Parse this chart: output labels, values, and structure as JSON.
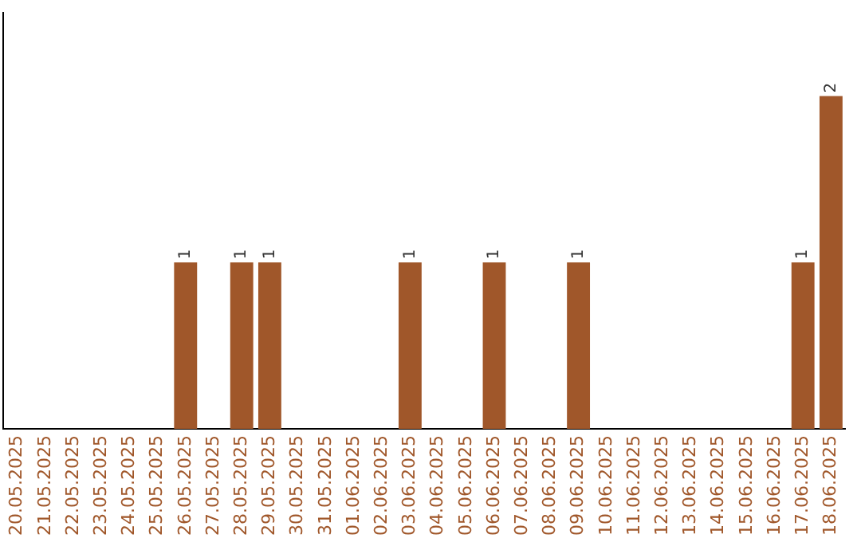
{
  "chart_data": {
    "type": "bar",
    "categories": [
      "20.05.2025",
      "21.05.2025",
      "22.05.2025",
      "23.05.2025",
      "24.05.2025",
      "25.05.2025",
      "26.05.2025",
      "27.05.2025",
      "28.05.2025",
      "29.05.2025",
      "30.05.2025",
      "31.05.2025",
      "01.06.2025",
      "02.06.2025",
      "03.06.2025",
      "04.06.2025",
      "05.06.2025",
      "06.06.2025",
      "07.06.2025",
      "08.06.2025",
      "09.06.2025",
      "10.06.2025",
      "11.06.2025",
      "12.06.2025",
      "13.06.2025",
      "14.06.2025",
      "15.06.2025",
      "16.06.2025",
      "17.06.2025",
      "18.06.2025"
    ],
    "values": [
      0,
      0,
      0,
      0,
      0,
      0,
      1,
      0,
      1,
      1,
      0,
      0,
      0,
      0,
      1,
      0,
      0,
      1,
      0,
      0,
      1,
      0,
      0,
      0,
      0,
      0,
      0,
      0,
      1,
      2
    ],
    "value_labels": [
      null,
      null,
      null,
      null,
      null,
      null,
      "1",
      null,
      "1",
      "1",
      null,
      null,
      null,
      null,
      "1",
      null,
      null,
      "1",
      null,
      null,
      "1",
      null,
      null,
      null,
      null,
      null,
      null,
      null,
      "1",
      "2"
    ],
    "color": "#a0572a",
    "grid": false,
    "legend": false,
    "tick_labels": "x"
  }
}
